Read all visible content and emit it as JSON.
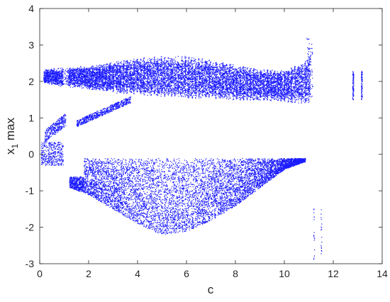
{
  "chart_data": {
    "type": "scatter",
    "title": "",
    "xlabel": "c",
    "ylabel": {
      "base": "x",
      "sub": "1",
      "rest": " max"
    },
    "xlim": [
      0,
      14
    ],
    "ylim": [
      -3,
      4
    ],
    "xticks": [
      0,
      2,
      4,
      6,
      8,
      10,
      12,
      14
    ],
    "yticks": [
      -3,
      -2,
      -1,
      0,
      1,
      2,
      3,
      4
    ],
    "grid": false,
    "legend": "none",
    "marker_color": "#1a1aff",
    "series": [
      {
        "description_key": "chaotic-upper-band",
        "points_sample": [
          [
            0.1,
            2.0
          ],
          [
            0.5,
            2.2
          ],
          [
            1.0,
            2.15
          ],
          [
            2.0,
            2.25
          ],
          [
            3.0,
            2.3
          ],
          [
            4.0,
            2.35
          ],
          [
            5.0,
            2.35
          ],
          [
            6.0,
            2.3
          ],
          [
            7.0,
            2.25
          ],
          [
            8.0,
            2.15
          ],
          [
            9.0,
            2.1
          ],
          [
            10.0,
            2.0
          ],
          [
            10.9,
            2.1
          ]
        ],
        "upper_envelope": [
          [
            0.2,
            2.35
          ],
          [
            1.0,
            2.4
          ],
          [
            2.0,
            2.45
          ],
          [
            3.0,
            2.55
          ],
          [
            4.0,
            2.65
          ],
          [
            5.0,
            2.7
          ],
          [
            6.0,
            2.7
          ],
          [
            7.0,
            2.6
          ],
          [
            8.0,
            2.45
          ],
          [
            9.0,
            2.35
          ],
          [
            10.0,
            2.3
          ],
          [
            10.9,
            2.6
          ],
          [
            11.1,
            3.2
          ]
        ],
        "lower_envelope": [
          [
            0.2,
            1.95
          ],
          [
            1.0,
            1.85
          ],
          [
            2.0,
            1.8
          ],
          [
            3.0,
            1.7
          ],
          [
            4.0,
            1.65
          ],
          [
            5.0,
            1.6
          ],
          [
            6.0,
            1.55
          ],
          [
            7.0,
            1.55
          ],
          [
            8.0,
            1.5
          ],
          [
            9.0,
            1.5
          ],
          [
            10.0,
            1.45
          ],
          [
            10.9,
            1.4
          ]
        ]
      },
      {
        "description_key": "middle-branch",
        "points_sample": [
          [
            0.3,
            0.6
          ],
          [
            0.6,
            0.8
          ],
          [
            0.9,
            1.0
          ],
          [
            1.5,
            0.9
          ],
          [
            2.0,
            1.05
          ],
          [
            2.5,
            1.2
          ],
          [
            3.0,
            1.3
          ],
          [
            3.5,
            1.5
          ]
        ]
      },
      {
        "description_key": "lower-branch",
        "points_sample": [
          [
            0.1,
            -0.1
          ],
          [
            0.3,
            0.2
          ],
          [
            0.6,
            0.3
          ],
          [
            0.9,
            0.1
          ],
          [
            0.9,
            -0.25
          ]
        ]
      },
      {
        "description_key": "chaotic-lower-band",
        "upper_envelope": [
          [
            1.8,
            -0.1
          ],
          [
            10.8,
            -0.1
          ]
        ],
        "lower_envelope": [
          [
            1.2,
            -0.9
          ],
          [
            2.0,
            -1.1
          ],
          [
            3.0,
            -1.5
          ],
          [
            4.0,
            -1.9
          ],
          [
            5.0,
            -2.2
          ],
          [
            6.0,
            -2.1
          ],
          [
            7.0,
            -1.8
          ],
          [
            8.0,
            -1.4
          ],
          [
            9.0,
            -0.9
          ],
          [
            10.0,
            -0.4
          ],
          [
            10.8,
            -0.2
          ]
        ]
      },
      {
        "description_key": "isolated-columns",
        "columns": [
          [
            11.2,
            -2.9,
            -1.3
          ],
          [
            11.5,
            -2.8,
            -1.3
          ],
          [
            12.8,
            1.5,
            2.3
          ],
          [
            13.15,
            1.5,
            2.3
          ]
        ]
      }
    ]
  }
}
